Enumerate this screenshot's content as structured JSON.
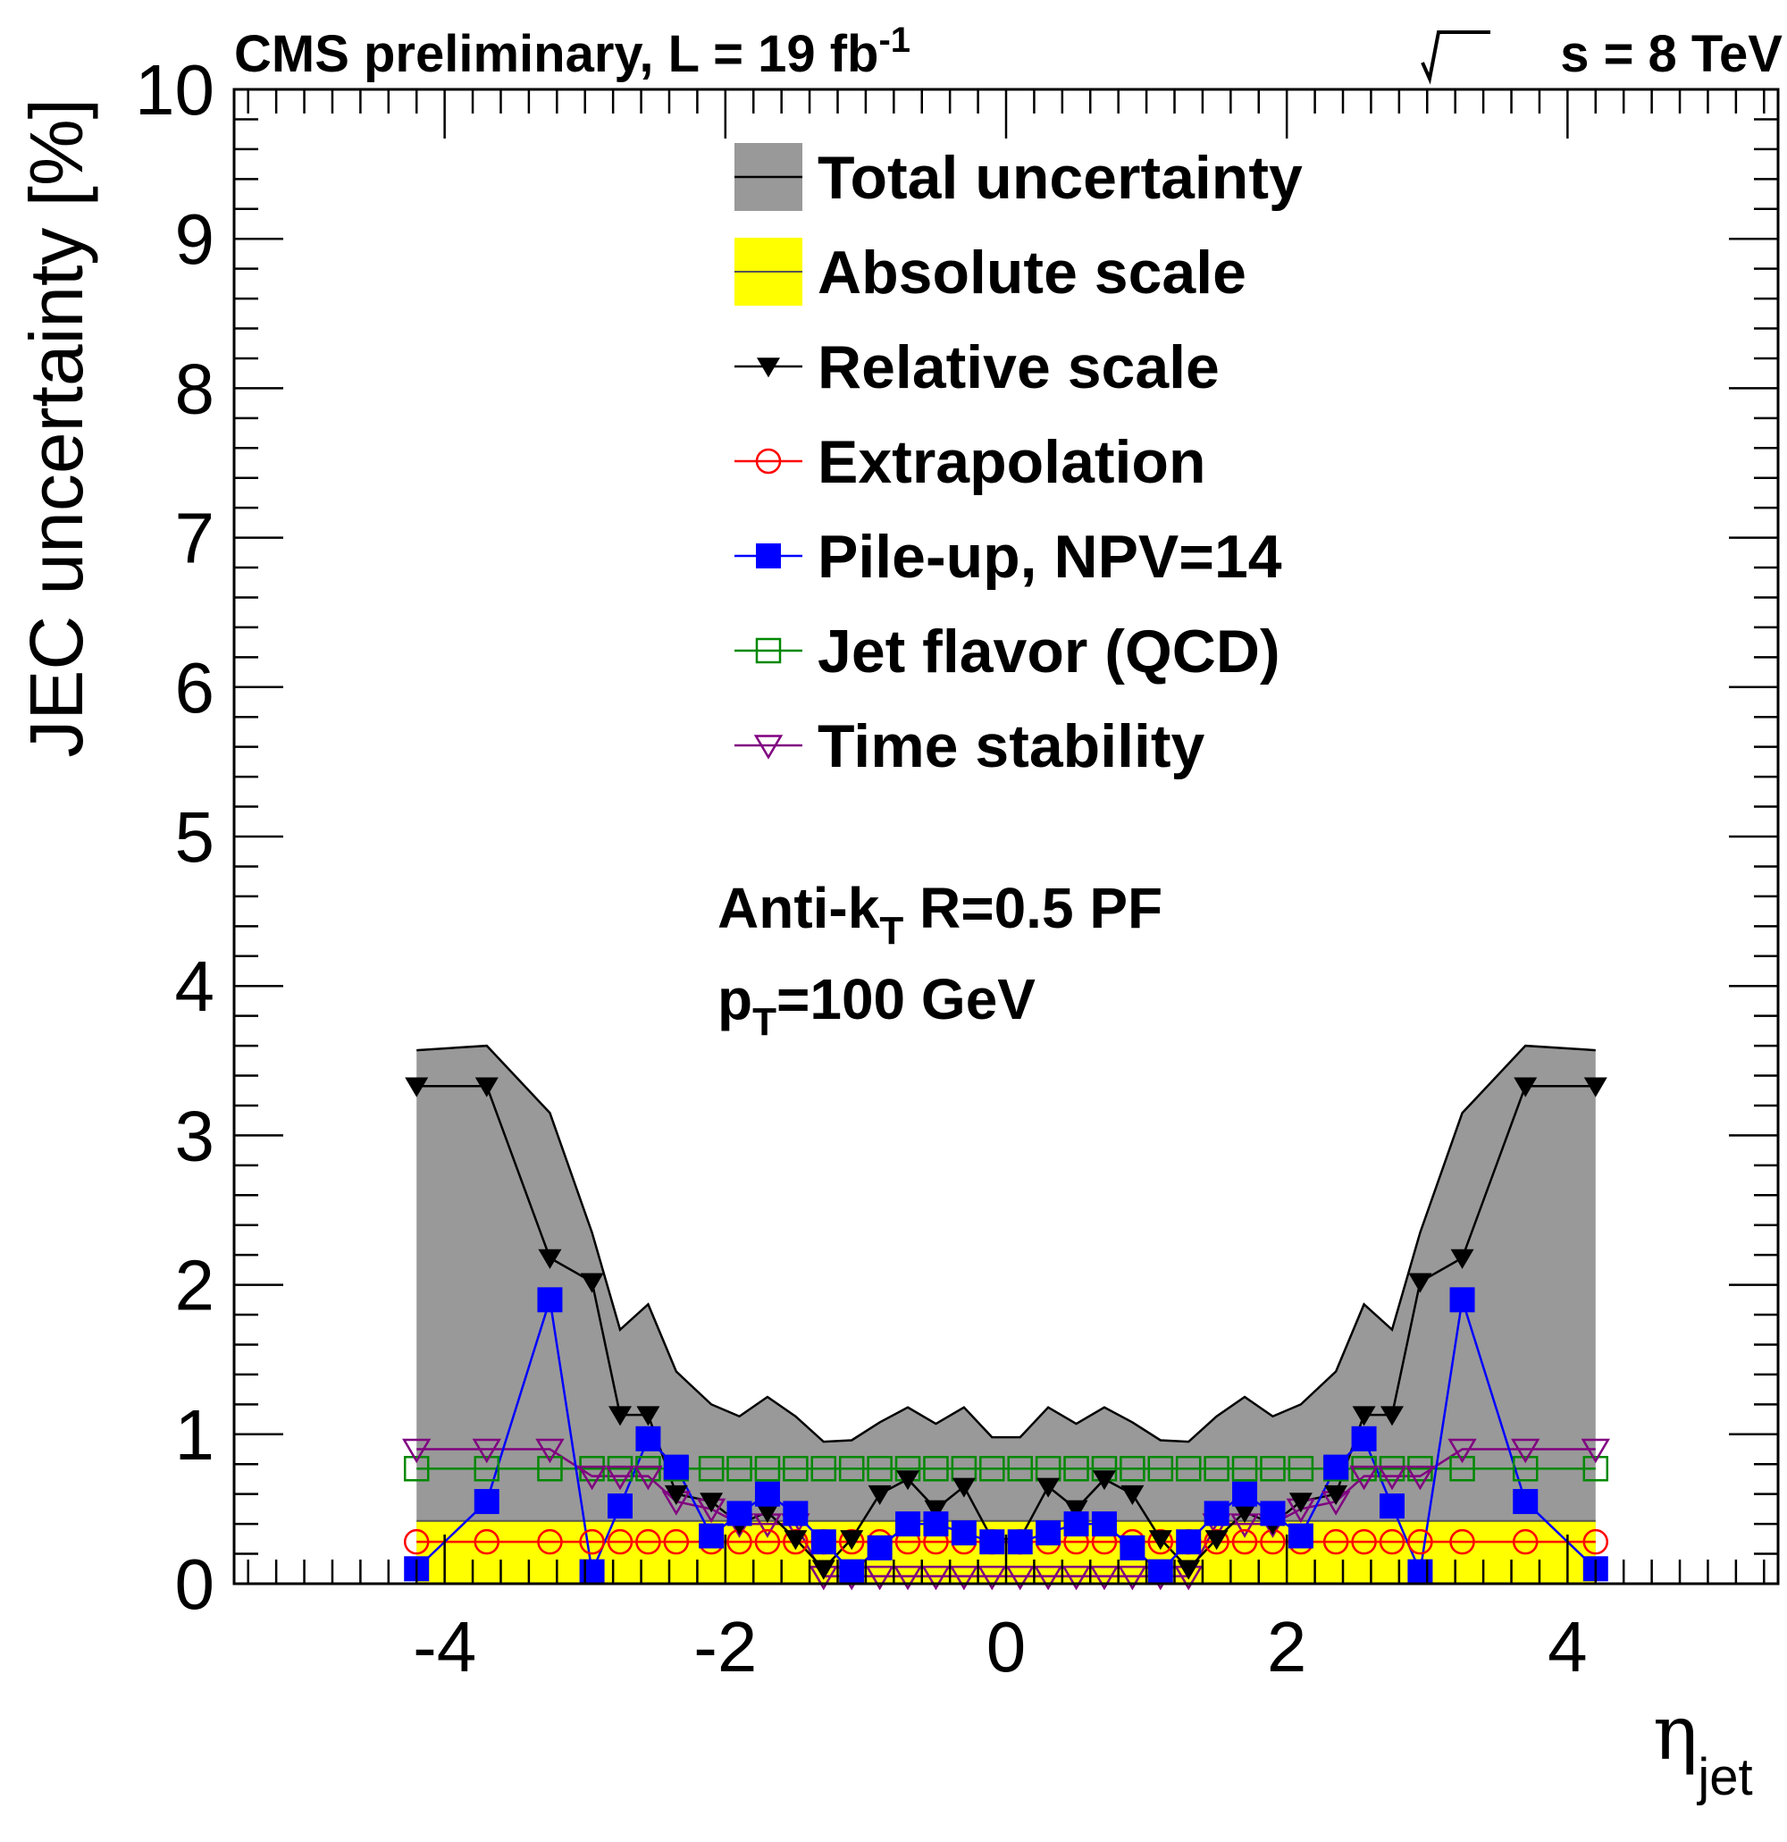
{
  "chart_data": {
    "type": "line",
    "header_left": "CMS preliminary, L = 19 fb",
    "header_left_sup": "-1",
    "header_right": "s = 8 TeV",
    "ylabel": "JEC uncertainty [%]",
    "xlabel": "η",
    "xlabel_sub": "jet",
    "xlim": [
      -5.5,
      5.5
    ],
    "ylim": [
      0,
      10
    ],
    "x_ticks": [
      "-4",
      "-2",
      "0",
      "2",
      "4"
    ],
    "y_ticks": [
      "0",
      "1",
      "2",
      "3",
      "4",
      "5",
      "6",
      "7",
      "8",
      "9",
      "10"
    ],
    "annotation": {
      "line1_main": "Anti-k",
      "line1_sub": "T",
      "line1_rest": " R=0.5 PF",
      "line2_main": "p",
      "line2_sub": "T",
      "line2_rest": "=100 GeV"
    },
    "legend": [
      {
        "label": "Total uncertainty",
        "style": "box-gray"
      },
      {
        "label": "Absolute scale",
        "style": "box-yellow"
      },
      {
        "label": "Relative scale",
        "style": "tri-down-filled"
      },
      {
        "label": "Extrapolation",
        "style": "circle-open"
      },
      {
        "label": "Pile-up, NPV=14",
        "style": "square-filled"
      },
      {
        "label": "Jet flavor (QCD)",
        "style": "square-open"
      },
      {
        "label": "Time stability",
        "style": "tri-down-open"
      }
    ],
    "colors": {
      "total": "#999999",
      "absolute": "#ffff00",
      "relative": "#000000",
      "extrapolation": "#ff0000",
      "pileup": "#0000ff",
      "flavor": "#008800",
      "time": "#800080"
    },
    "x": [
      -4.2,
      -3.7,
      -3.25,
      -2.95,
      -2.75,
      -2.55,
      -2.35,
      -2.1,
      -1.9,
      -1.7,
      -1.5,
      -1.3,
      -1.1,
      -0.9,
      -0.7,
      -0.5,
      -0.3,
      -0.1,
      0.1,
      0.3,
      0.5,
      0.7,
      0.9,
      1.1,
      1.3,
      1.5,
      1.7,
      1.9,
      2.1,
      2.35,
      2.55,
      2.75,
      2.95,
      3.25,
      3.7,
      4.2
    ],
    "series": [
      {
        "name": "Total uncertainty",
        "key": "total",
        "values": [
          3.57,
          3.6,
          3.15,
          2.35,
          1.7,
          1.87,
          1.42,
          1.2,
          1.12,
          1.25,
          1.12,
          0.95,
          0.96,
          1.08,
          1.18,
          1.07,
          1.18,
          0.98,
          0.98,
          1.18,
          1.07,
          1.18,
          1.08,
          0.96,
          0.95,
          1.12,
          1.25,
          1.12,
          1.2,
          1.42,
          1.87,
          1.7,
          2.35,
          3.15,
          3.6,
          3.57
        ]
      },
      {
        "name": "Absolute scale",
        "key": "absolute",
        "values": [
          0.42,
          0.42,
          0.42,
          0.42,
          0.42,
          0.42,
          0.42,
          0.42,
          0.42,
          0.42,
          0.42,
          0.42,
          0.42,
          0.42,
          0.42,
          0.42,
          0.42,
          0.42,
          0.42,
          0.42,
          0.42,
          0.42,
          0.42,
          0.42,
          0.42,
          0.42,
          0.42,
          0.42,
          0.42,
          0.42,
          0.42,
          0.42,
          0.42,
          0.42,
          0.42,
          0.42
        ]
      },
      {
        "name": "Relative scale",
        "key": "relative",
        "values": [
          3.33,
          3.33,
          2.18,
          2.02,
          1.13,
          1.13,
          0.6,
          0.55,
          0.4,
          0.48,
          0.3,
          0.1,
          0.3,
          0.6,
          0.7,
          0.5,
          0.65,
          0.3,
          0.3,
          0.65,
          0.5,
          0.7,
          0.6,
          0.3,
          0.1,
          0.3,
          0.48,
          0.4,
          0.55,
          0.6,
          1.13,
          1.13,
          2.02,
          2.18,
          3.33,
          3.33
        ]
      },
      {
        "name": "Extrapolation",
        "key": "extrapolation",
        "values": [
          0.28,
          0.28,
          0.28,
          0.28,
          0.28,
          0.28,
          0.28,
          0.28,
          0.28,
          0.28,
          0.28,
          0.28,
          0.28,
          0.28,
          0.28,
          0.28,
          0.28,
          0.28,
          0.28,
          0.28,
          0.28,
          0.28,
          0.28,
          0.28,
          0.28,
          0.28,
          0.28,
          0.28,
          0.28,
          0.28,
          0.28,
          0.28,
          0.28,
          0.28,
          0.28,
          0.28
        ]
      },
      {
        "name": "Pile-up, NPV=14",
        "key": "pileup",
        "values": [
          0.1,
          0.55,
          1.9,
          0.08,
          0.52,
          0.97,
          0.78,
          0.32,
          0.47,
          0.6,
          0.47,
          0.28,
          0.08,
          0.24,
          0.4,
          0.4,
          0.34,
          0.28,
          0.28,
          0.34,
          0.4,
          0.4,
          0.24,
          0.08,
          0.28,
          0.47,
          0.6,
          0.47,
          0.32,
          0.78,
          0.97,
          0.52,
          0.08,
          1.9,
          0.55,
          0.1
        ]
      },
      {
        "name": "Jet flavor (QCD)",
        "key": "flavor",
        "values": [
          0.77,
          0.77,
          0.77,
          0.77,
          0.77,
          0.77,
          0.77,
          0.77,
          0.77,
          0.77,
          0.77,
          0.77,
          0.77,
          0.77,
          0.77,
          0.77,
          0.77,
          0.77,
          0.77,
          0.77,
          0.77,
          0.77,
          0.77,
          0.77,
          0.77,
          0.77,
          0.77,
          0.77,
          0.77,
          0.77,
          0.77,
          0.77,
          0.77,
          0.77,
          0.77,
          0.77
        ]
      },
      {
        "name": "Time stability",
        "key": "time",
        "values": [
          0.9,
          0.9,
          0.9,
          0.72,
          0.72,
          0.72,
          0.55,
          0.5,
          0.4,
          0.4,
          0.4,
          0.05,
          0.05,
          0.05,
          0.05,
          0.05,
          0.05,
          0.05,
          0.05,
          0.05,
          0.05,
          0.05,
          0.05,
          0.05,
          0.05,
          0.4,
          0.4,
          0.4,
          0.5,
          0.55,
          0.72,
          0.72,
          0.72,
          0.9,
          0.9,
          0.9
        ]
      }
    ]
  }
}
